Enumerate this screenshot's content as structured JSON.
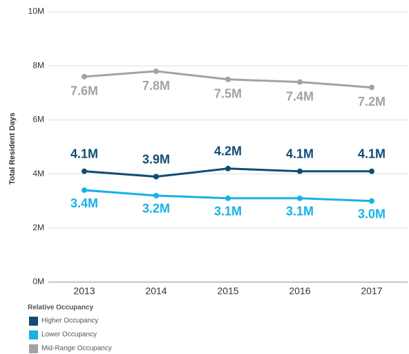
{
  "chart_data": {
    "type": "line",
    "y_label": "Total Resident Days",
    "categories": [
      "2013",
      "2014",
      "2015",
      "2016",
      "2017"
    ],
    "series": [
      {
        "name": "Higher Occupancy",
        "color": "#0f4c75",
        "values": [
          4100000,
          3900000,
          4200000,
          4100000,
          4100000
        ],
        "value_labels": [
          "4.1M",
          "3.9M",
          "4.2M",
          "4.1M",
          "4.1M"
        ]
      },
      {
        "name": "Lower Occupancy",
        "color": "#17b1e6",
        "values": [
          3400000,
          3200000,
          3100000,
          3100000,
          3000000
        ],
        "value_labels": [
          "3.4M",
          "3.2M",
          "3.1M",
          "3.1M",
          "3.0M"
        ]
      },
      {
        "name": "Mid-Range Occupancy",
        "color": "#a3a3a3",
        "values": [
          7600000,
          7800000,
          7500000,
          7400000,
          7200000
        ],
        "value_labels": [
          "7.6M",
          "7.8M",
          "7.5M",
          "7.4M",
          "7.2M"
        ]
      }
    ],
    "ylim": [
      0,
      10000000
    ],
    "yticks": [
      {
        "value": 0,
        "label": "0M"
      },
      {
        "value": 2000000,
        "label": "2M"
      },
      {
        "value": 4000000,
        "label": "4M"
      },
      {
        "value": 6000000,
        "label": "6M"
      },
      {
        "value": 8000000,
        "label": "8M"
      },
      {
        "value": 10000000,
        "label": "10M"
      }
    ],
    "grid": true,
    "legend_title": "Relative Occupancy",
    "legend_position": "bottom-left"
  }
}
